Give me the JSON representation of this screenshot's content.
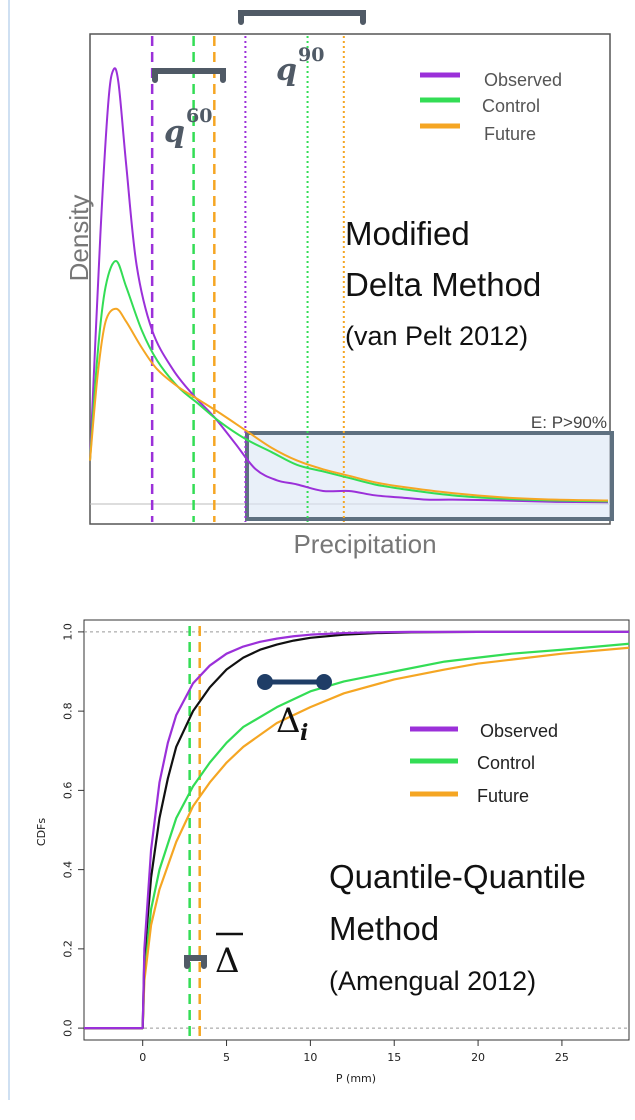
{
  "chart_data": [
    {
      "type": "line",
      "xlabel": "Precipitation",
      "ylabel": "Density",
      "annotations": {
        "method_line1": "Modified",
        "method_line2": "Delta Method",
        "citation": "(van Pelt 2012)",
        "q_low": "q",
        "q_low_sup": "60",
        "q_high": "q",
        "q_high_sup": "90",
        "extreme_box": "E: P>90%"
      },
      "legend_position": "top-right",
      "series": [
        {
          "name": "Observed",
          "color": "#9b30d9",
          "x": [
            0,
            0.02,
            0.035,
            0.045,
            0.055,
            0.07,
            0.09,
            0.12,
            0.16,
            0.2,
            0.24,
            0.28,
            0.32,
            0.36,
            0.4,
            0.45,
            0.5,
            0.55,
            0.6,
            0.65,
            0.7,
            0.8,
            0.9,
            1.0
          ],
          "y": [
            0.1,
            0.62,
            0.92,
            1.0,
            0.97,
            0.78,
            0.55,
            0.4,
            0.31,
            0.25,
            0.2,
            0.14,
            0.08,
            0.055,
            0.045,
            0.03,
            0.03,
            0.02,
            0.015,
            0.01,
            0.01,
            0.008,
            0.005,
            0.004
          ]
        },
        {
          "name": "Control",
          "color": "#33dd55",
          "x": [
            0,
            0.015,
            0.03,
            0.05,
            0.07,
            0.1,
            0.13,
            0.17,
            0.21,
            0.25,
            0.3,
            0.35,
            0.4,
            0.45,
            0.5,
            0.55,
            0.6,
            0.7,
            0.8,
            0.9,
            1.0
          ],
          "y": [
            0.1,
            0.35,
            0.5,
            0.56,
            0.5,
            0.4,
            0.33,
            0.27,
            0.23,
            0.19,
            0.15,
            0.12,
            0.09,
            0.075,
            0.06,
            0.045,
            0.035,
            0.02,
            0.012,
            0.008,
            0.006
          ]
        },
        {
          "name": "Future",
          "color": "#f5a623",
          "x": [
            0,
            0.015,
            0.03,
            0.05,
            0.07,
            0.1,
            0.13,
            0.17,
            0.21,
            0.25,
            0.3,
            0.35,
            0.4,
            0.45,
            0.5,
            0.55,
            0.6,
            0.7,
            0.8,
            0.9,
            1.0
          ],
          "y": [
            0.1,
            0.3,
            0.42,
            0.45,
            0.42,
            0.36,
            0.31,
            0.27,
            0.24,
            0.21,
            0.17,
            0.13,
            0.1,
            0.08,
            0.065,
            0.05,
            0.04,
            0.025,
            0.015,
            0.01,
            0.008
          ]
        }
      ],
      "vlines": [
        {
          "series": "Observed",
          "x": 0.12,
          "style": "dashed"
        },
        {
          "series": "Control",
          "x": 0.2,
          "style": "dashed"
        },
        {
          "series": "Future",
          "x": 0.24,
          "style": "dashed"
        },
        {
          "series": "Observed",
          "x": 0.3,
          "style": "dotted"
        },
        {
          "series": "Control",
          "x": 0.42,
          "style": "dotted"
        },
        {
          "series": "Future",
          "x": 0.49,
          "style": "dotted"
        }
      ]
    },
    {
      "type": "line",
      "xlabel": "P (mm)",
      "ylabel": "CDFs",
      "xlim": [
        -3.5,
        29
      ],
      "ylim": [
        -0.03,
        1.03
      ],
      "xticks": [
        "0",
        "5",
        "10",
        "15",
        "20",
        "25"
      ],
      "yticks": [
        "0.0",
        "0.2",
        "0.4",
        "0.6",
        "0.8",
        "1.0"
      ],
      "annotations": {
        "method_line1": "Quantile-Quantile",
        "method_line2": "Method",
        "citation": "(Amengual  2012)",
        "delta_i": "Δ",
        "delta_i_sub": "i",
        "delta_bar": "Δ"
      },
      "legend_position": "right",
      "series": [
        {
          "name": "Observed",
          "color": "#9b30d9",
          "x": [
            -3.5,
            0,
            0.1,
            0.5,
            1,
            1.5,
            2,
            3,
            4,
            5,
            6,
            7,
            8,
            9,
            10,
            12,
            14,
            16,
            20,
            29
          ],
          "y": [
            0,
            0,
            0.2,
            0.45,
            0.62,
            0.72,
            0.79,
            0.87,
            0.915,
            0.945,
            0.963,
            0.975,
            0.983,
            0.989,
            0.993,
            0.997,
            0.999,
            1.0,
            1.0,
            1.0
          ]
        },
        {
          "name": "",
          "color": "#111111",
          "x": [
            -3.5,
            0,
            0.1,
            0.5,
            1,
            1.5,
            2,
            3,
            4,
            5,
            6,
            7,
            8,
            9,
            10,
            12,
            14,
            16,
            20,
            29
          ],
          "y": [
            0,
            0,
            0.18,
            0.38,
            0.53,
            0.63,
            0.71,
            0.8,
            0.86,
            0.905,
            0.935,
            0.955,
            0.968,
            0.978,
            0.985,
            0.993,
            0.997,
            0.999,
            1.0,
            1.0
          ]
        },
        {
          "name": "Control",
          "color": "#33dd55",
          "x": [
            -3.5,
            0,
            0.1,
            0.5,
            1,
            2,
            3,
            4,
            5,
            6,
            8,
            10,
            12,
            15,
            18,
            20,
            22,
            25,
            29
          ],
          "y": [
            0,
            0,
            0.14,
            0.3,
            0.4,
            0.53,
            0.61,
            0.67,
            0.72,
            0.76,
            0.81,
            0.85,
            0.875,
            0.9,
            0.925,
            0.935,
            0.945,
            0.955,
            0.97
          ]
        },
        {
          "name": "Future",
          "color": "#f5a623",
          "x": [
            -3.5,
            0,
            0.1,
            0.5,
            1,
            2,
            3,
            4,
            5,
            6,
            8,
            10,
            12,
            15,
            18,
            20,
            22,
            25,
            29
          ],
          "y": [
            0,
            0,
            0.12,
            0.26,
            0.35,
            0.47,
            0.56,
            0.62,
            0.67,
            0.71,
            0.77,
            0.81,
            0.845,
            0.88,
            0.905,
            0.92,
            0.93,
            0.945,
            0.96
          ]
        }
      ],
      "vlines": [
        {
          "series": "Control",
          "x": 2.8,
          "style": "dashed"
        },
        {
          "series": "Future",
          "x": 3.4,
          "style": "dashed"
        }
      ],
      "hlines_dotted": [
        0,
        1
      ]
    }
  ]
}
